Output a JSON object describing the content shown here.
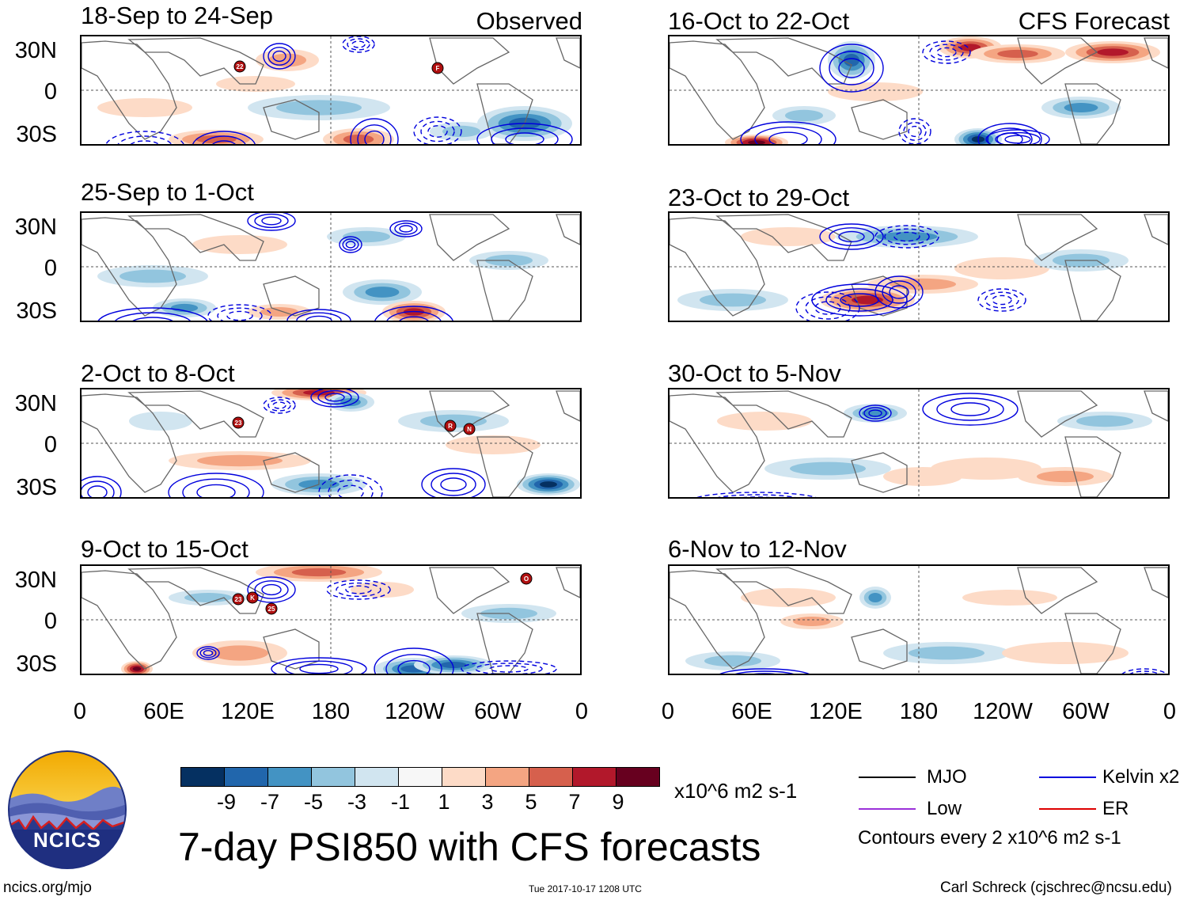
{
  "figure": {
    "title": "7-day PSI850 with CFS forecasts",
    "website": "ncics.org/mjo",
    "timestamp": "Tue 2017-10-17 1208 UTC",
    "author": "Carl Schreck (cjschrec@ncsu.edu)",
    "logo_text": "NCICS",
    "units": "x10^6 m2 s-1",
    "contour_note": "Contours every 2 x10^6 m2 s-1"
  },
  "columns": {
    "observed_label": "Observed",
    "forecast_label": "CFS Forecast"
  },
  "axes": {
    "lat_ticks": [
      "30N",
      "0",
      "30S"
    ],
    "lon_ticks": [
      "0",
      "60E",
      "120E",
      "180",
      "120W",
      "60W",
      "0"
    ]
  },
  "colorbar": {
    "labels": [
      "-9",
      "-7",
      "-5",
      "-3",
      "-1",
      "1",
      "3",
      "5",
      "7",
      "9"
    ],
    "colors": [
      "#053061",
      "#2166ac",
      "#4393c3",
      "#92c5de",
      "#d1e5f0",
      "#f7f7f7",
      "#fddbc7",
      "#f4a582",
      "#d6604d",
      "#b2182b",
      "#67001f"
    ]
  },
  "legend": {
    "items": [
      {
        "label": "MJO",
        "color": "#000000"
      },
      {
        "label": "Low",
        "color": "#9b30d9"
      },
      {
        "label": "Kelvin x2",
        "color": "#0000dd"
      },
      {
        "label": "ER",
        "color": "#dd0000"
      }
    ]
  },
  "chart_data": {
    "type": "heatmap",
    "variable": "PSI850 anomaly",
    "x_range": [
      0,
      360
    ],
    "y_range": [
      -40,
      40
    ],
    "panels": [
      {
        "title": "18-Sep to 24-Sep",
        "source": "Observed",
        "storms": [
          "22",
          "F"
        ]
      },
      {
        "title": "25-Sep to 1-Oct",
        "source": "Observed",
        "storms": []
      },
      {
        "title": "2-Oct to 8-Oct",
        "source": "Observed",
        "storms": [
          "23",
          "R",
          "N"
        ]
      },
      {
        "title": "9-Oct to 15-Oct",
        "source": "Observed",
        "storms": [
          "23",
          "K",
          "25",
          "O"
        ]
      },
      {
        "title": "16-Oct to 22-Oct",
        "source": "CFS Forecast",
        "storms": []
      },
      {
        "title": "23-Oct to 29-Oct",
        "source": "CFS Forecast",
        "storms": []
      },
      {
        "title": "30-Oct to 5-Nov",
        "source": "CFS Forecast",
        "storms": []
      },
      {
        "title": "6-Nov to 12-Nov",
        "source": "CFS Forecast",
        "storms": []
      }
    ]
  }
}
